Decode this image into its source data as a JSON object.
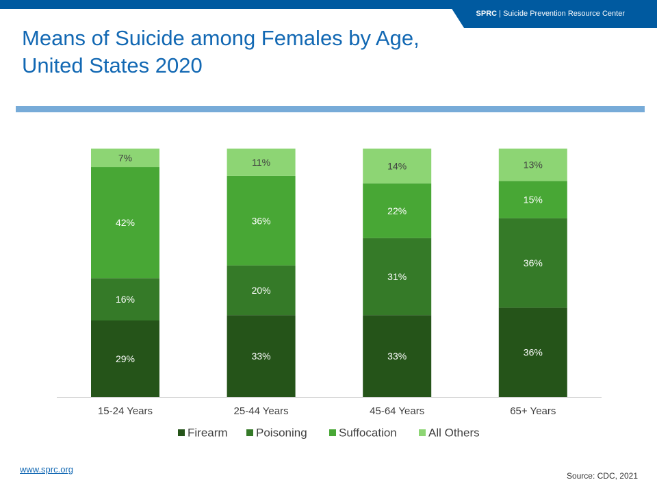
{
  "header": {
    "brand_abbr": "SPRC",
    "brand_sep": "|",
    "brand_name": "Suicide Prevention Resource Center",
    "title": "Means of Suicide among Females by Age, United States 2020"
  },
  "footer": {
    "link": "www.sprc.org",
    "source": "Source: CDC, 2021"
  },
  "colors": {
    "brand_blue": "#005aa0",
    "title_blue": "#1268b3",
    "rule_blue": "#77abd8"
  },
  "chart_data": {
    "type": "bar",
    "stacked": "100%",
    "categories": [
      "15-24 Years",
      "25-44 Years",
      "45-64 Years",
      "65+ Years"
    ],
    "series": [
      {
        "name": "Firearm",
        "color": "#255419",
        "values": [
          29,
          33,
          33,
          36
        ],
        "labels": [
          "29%",
          "33%",
          "33%",
          "36%"
        ]
      },
      {
        "name": "Poisoning",
        "color": "#357a28",
        "values": [
          16,
          20,
          31,
          36
        ],
        "labels": [
          "16%",
          "20%",
          "31%",
          "36%"
        ]
      },
      {
        "name": "Suffocation",
        "color": "#48a735",
        "values": [
          42,
          36,
          22,
          15
        ],
        "labels": [
          "42%",
          "36%",
          "22%",
          "15%"
        ]
      },
      {
        "name": "All Others",
        "color": "#8dd574",
        "values": [
          7,
          11,
          14,
          13
        ],
        "labels": [
          "7%",
          "11%",
          "14%",
          "13%"
        ]
      }
    ],
    "legend_position": "bottom",
    "grid": false
  }
}
